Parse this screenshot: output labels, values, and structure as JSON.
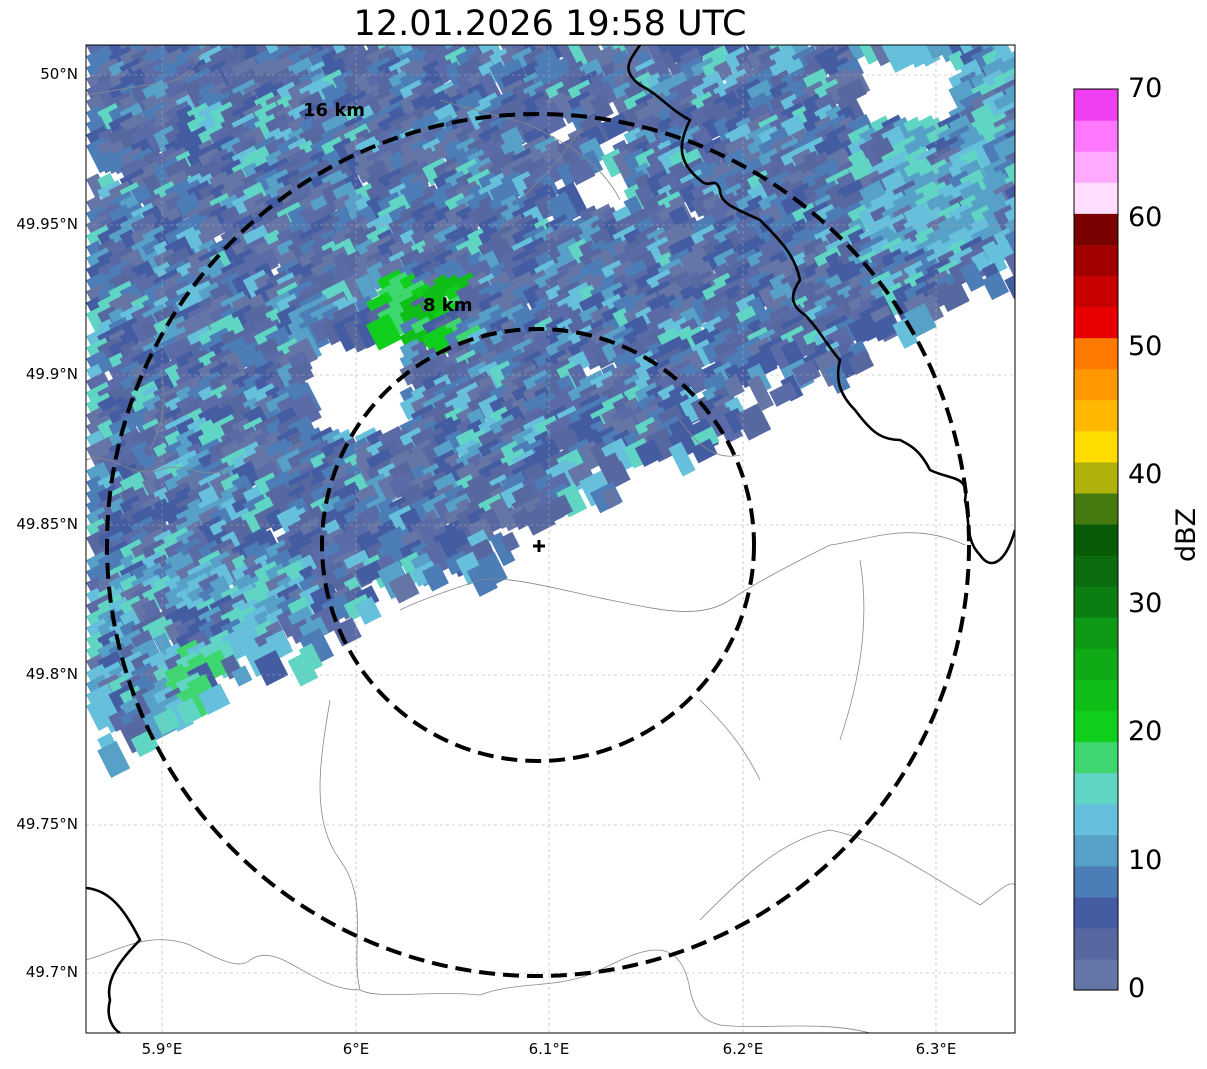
{
  "title": "12.01.2026 19:58 UTC",
  "map": {
    "lat_labels": [
      "50°N",
      "49.95°N",
      "49.9°N",
      "49.85°N",
      "49.8°N",
      "49.75°N",
      "49.7°N"
    ],
    "lon_labels": [
      "5.9°E",
      "6°E",
      "6.1°E",
      "6.2°E",
      "6.3°E"
    ],
    "lon_range": [
      5.86,
      6.34
    ],
    "lat_range": [
      49.68,
      50.01
    ],
    "radar_site": {
      "lon": 6.095,
      "lat": 49.844
    },
    "rings": [
      {
        "label": "8 km",
        "radius_km": 8
      },
      {
        "label": "16 km",
        "radius_km": 16
      }
    ],
    "gridlines": true
  },
  "colorbar": {
    "label": "dBZ",
    "ticks": [
      "0",
      "10",
      "20",
      "30",
      "40",
      "50",
      "60",
      "70"
    ],
    "colors": [
      "#6575a5",
      "#56689f",
      "#445ca2",
      "#4d7db6",
      "#57a0c8",
      "#66c0dc",
      "#60d5c4",
      "#3ed66e",
      "#0fcf1c",
      "#10be18",
      "#10aa16",
      "#0e9a14",
      "#0b7e12",
      "#0c6a0f",
      "#075a07",
      "#457a10",
      "#aeb20a",
      "#ffdc00",
      "#ffb800",
      "#ff9800",
      "#ff7800",
      "#e80000",
      "#c80000",
      "#a00000",
      "#780000",
      "#ffddff",
      "#ffaaff",
      "#ff77ff",
      "#f03ff0"
    ]
  }
}
